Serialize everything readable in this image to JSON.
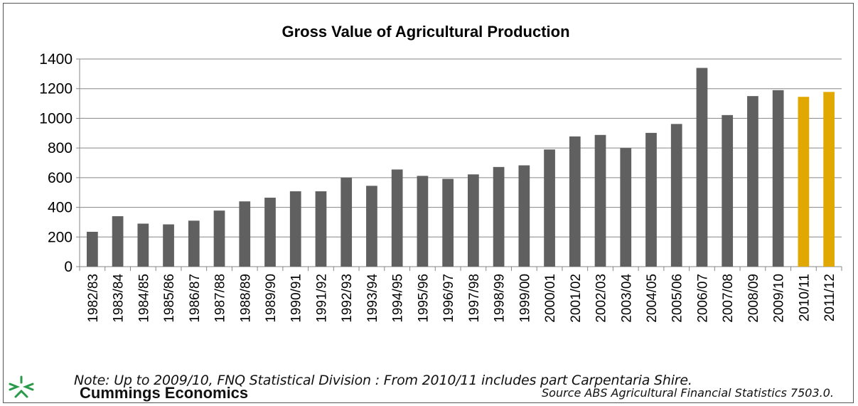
{
  "chart_data": {
    "type": "bar",
    "title": "Gross Value of Agricultural Production",
    "xlabel": "",
    "ylabel": "",
    "ylim": [
      0,
      1400
    ],
    "yticks": [
      0,
      200,
      400,
      600,
      800,
      1000,
      1200,
      1400
    ],
    "grid": true,
    "categories": [
      "1982/83",
      "1983/84",
      "1984/85",
      "1985/86",
      "1986/87",
      "1987/88",
      "1988/89",
      "1989/90",
      "1990/91",
      "1991/92",
      "1992/93",
      "1993/94",
      "1994/95",
      "1995/96",
      "1996/97",
      "1997/98",
      "1998/99",
      "1999/00",
      "2000/01",
      "2001/02",
      "2002/03",
      "2003/04",
      "2004/05",
      "2005/06",
      "2006/07",
      "2007/08",
      "2008/09",
      "2009/10",
      "2010/11",
      "2011/12"
    ],
    "values": [
      235,
      340,
      290,
      285,
      310,
      378,
      440,
      465,
      508,
      508,
      600,
      545,
      655,
      612,
      592,
      622,
      672,
      683,
      790,
      878,
      888,
      800,
      902,
      962,
      1340,
      1022,
      1150,
      1190,
      1145,
      1178
    ],
    "colors": {
      "default": "#606060",
      "highlight": "#E0A800",
      "highlight_from": "2010/11",
      "grid": "#868686"
    }
  },
  "note": "Note: Up to 2009/10, FNQ Statistical Division : From 2010/11 includes part Carpentaria Shire.",
  "brand": {
    "name": "Cummings Economics",
    "logo_icon": "cummings-economics-logo-icon",
    "logo_color": "#2A9A4A"
  },
  "source": "Source ABS Agricultural Financial Statistics 7503.0."
}
